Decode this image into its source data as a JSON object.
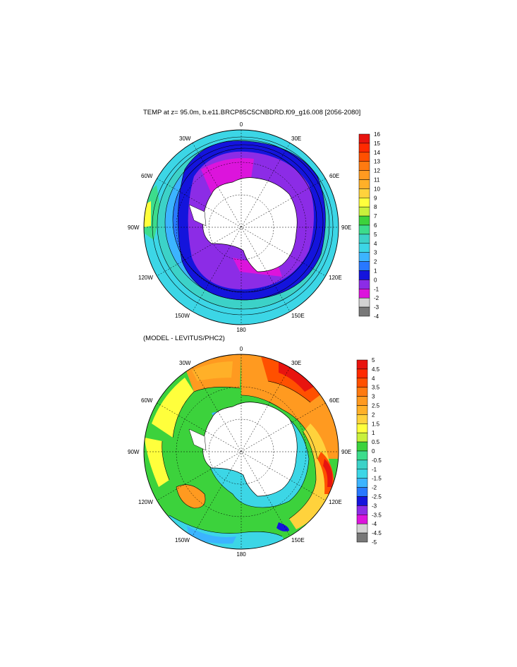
{
  "map1": {
    "title": "TEMP at z=  95.0m, b.e11.BRCP85C5CNBDRD.f09_g16.008 [2056-2080]",
    "lon_labels": {
      "top": "0",
      "tl30": "30W",
      "tr30": "30E",
      "l60": "60W",
      "r60": "60E",
      "l90": "90W",
      "r90": "90E",
      "l120": "120W",
      "r120": "120E",
      "l150": "150W",
      "r150": "150E",
      "bottom": "180"
    },
    "colorbar": {
      "labels": [
        "16",
        "15",
        "14",
        "13",
        "12",
        "11",
        "10",
        "9",
        "8",
        "7",
        "6",
        "5",
        "4",
        "3",
        "2",
        "1",
        "0",
        "-1",
        "-2",
        "-3",
        "-4"
      ],
      "colors": [
        "#e8140f",
        "#ff2a00",
        "#ff5000",
        "#ff7a10",
        "#ff9a20",
        "#ffb028",
        "#ffd23c",
        "#ffff3c",
        "#c8f03c",
        "#3cd23c",
        "#3cdc8c",
        "#3cd2c8",
        "#3cd6e6",
        "#3cb4ff",
        "#2878ff",
        "#1414dc",
        "#8c2ce6",
        "#dc14dc",
        "#d2d2d2",
        "#787878"
      ]
    }
  },
  "map2": {
    "title": "(MODEL - LEVITUS/PHC2)",
    "lon_labels": {
      "top": "0",
      "tl30": "30W",
      "tr30": "30E",
      "l60": "60W",
      "r60": "60E",
      "l90": "90W",
      "r90": "90E",
      "l120": "120W",
      "r120": "120E",
      "l150": "150W",
      "r150": "150E",
      "bottom": "180"
    },
    "colorbar": {
      "labels": [
        "5",
        "4.5",
        "4",
        "3.5",
        "3",
        "2.5",
        "2",
        "1.5",
        "1",
        "0.5",
        "0",
        "-0.5",
        "-1",
        "-1.5",
        "-2",
        "-2.5",
        "-3",
        "-3.5",
        "-4",
        "-4.5",
        "-5"
      ],
      "colors": [
        "#e8140f",
        "#ff2a00",
        "#ff5000",
        "#ff7a10",
        "#ff9a20",
        "#ffb028",
        "#ffd23c",
        "#ffff3c",
        "#c8f03c",
        "#3cd23c",
        "#3cdc8c",
        "#3cd2c8",
        "#3cd6e6",
        "#3cb4ff",
        "#2878ff",
        "#1414dc",
        "#8c2ce6",
        "#dc14dc",
        "#d2d2d2",
        "#787878"
      ]
    }
  }
}
